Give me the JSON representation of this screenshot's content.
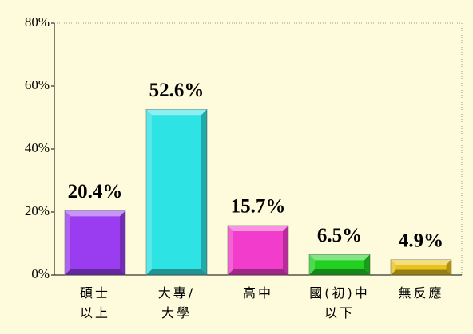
{
  "chart_data": {
    "type": "bar",
    "categories": [
      "碩士\n以上",
      "大專/\n大學",
      "高中",
      "國(初)中\n以下",
      "無反應"
    ],
    "values": [
      20.4,
      52.6,
      15.7,
      6.5,
      4.9
    ],
    "value_labels": [
      "20.4%",
      "52.6%",
      "15.7%",
      "6.5%",
      "4.9%"
    ],
    "colors": [
      "#9a3cf0",
      "#2ee3e3",
      "#f23ccb",
      "#22d022",
      "#e9c21a"
    ],
    "ylim": [
      0,
      80
    ],
    "yticks": [
      {
        "value": 0,
        "label": "0%"
      },
      {
        "value": 20,
        "label": "20%"
      },
      {
        "value": 40,
        "label": "40%"
      },
      {
        "value": 60,
        "label": "60%"
      },
      {
        "value": 80,
        "label": "80%"
      }
    ]
  }
}
